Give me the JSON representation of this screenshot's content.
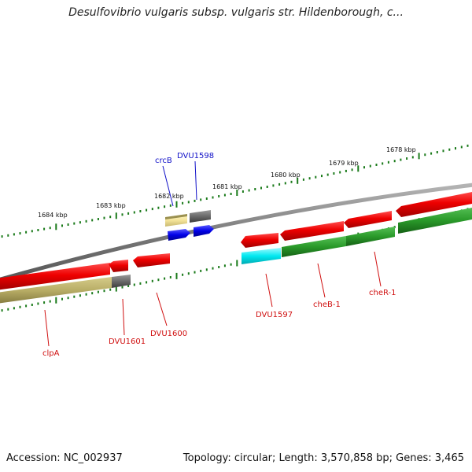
{
  "title": "Desulfovibrio vulgaris subsp. vulgaris str. Hildenborough, c...",
  "footer": {
    "accession": "Accession: NC_002937",
    "summary": "Topology: circular; Length: 3,570,858 bp; Genes: 3,465"
  },
  "scale_labels": [
    "1684 kbp",
    "1683 kbp",
    "1682 kbp",
    "1681 kbp",
    "1680 kbp",
    "1679 kbp",
    "1678 kbp"
  ],
  "gene_labels": {
    "top": [
      "crcB",
      "DVU1598"
    ],
    "bottom": [
      "clpA",
      "DVU1601",
      "DVU1600",
      "DVU1597",
      "cheB-1",
      "cheR-1"
    ]
  },
  "colors": {
    "label_top": "#1010c8",
    "label_bottom": "#d01010",
    "tick": "#1a7a1a",
    "backbone": "#8a8a8a"
  }
}
